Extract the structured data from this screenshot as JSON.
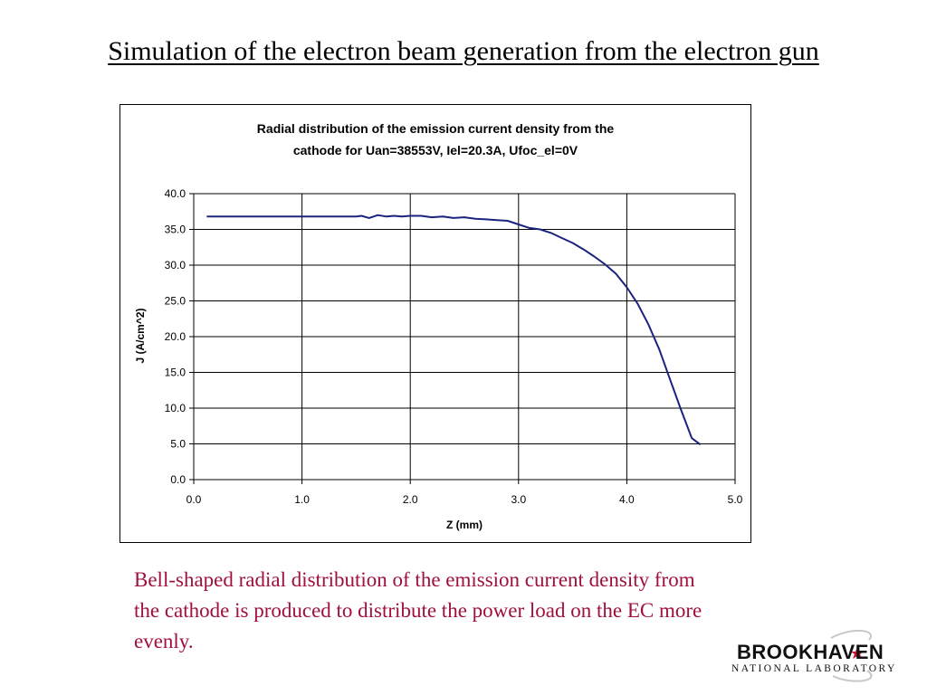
{
  "slide": {
    "title": "Simulation of the electron beam generation from the electron gun",
    "caption": "Bell-shaped radial distribution of the emission current density from the cathode is produced to distribute the power load on the EC more evenly."
  },
  "logo": {
    "name": "BROOKHAVEN",
    "subtitle": "NATIONAL LABORATORY",
    "accent_color": "#c8102e"
  },
  "chart_data": {
    "type": "line",
    "title_lines": [
      "Radial distribution of the emission current density from the",
      "cathode for Uan=38553V, Iel=20.3A, Ufoc_el=0V"
    ],
    "xlabel": "Z (mm)",
    "ylabel": "J (A/cm^2)",
    "xlim": [
      0,
      5
    ],
    "ylim": [
      0,
      40
    ],
    "x_ticks": [
      "0.0",
      "1.0",
      "2.0",
      "3.0",
      "4.0",
      "5.0"
    ],
    "y_ticks": [
      "0.0",
      "5.0",
      "10.0",
      "15.0",
      "20.0",
      "25.0",
      "30.0",
      "35.0",
      "40.0"
    ],
    "grid": true,
    "legend": "none",
    "series_color": "#1a237e",
    "series": [
      {
        "x": [
          0.12,
          0.5,
          1.0,
          1.5,
          1.55,
          1.62,
          1.7,
          1.78,
          1.85,
          1.92,
          2.0,
          2.1,
          2.2,
          2.3,
          2.4,
          2.5,
          2.6,
          2.7,
          2.8,
          2.9,
          3.0,
          3.1,
          3.2,
          3.3,
          3.4,
          3.5,
          3.6,
          3.7,
          3.8,
          3.9,
          4.0,
          4.1,
          4.2,
          4.3,
          4.4,
          4.5,
          4.6,
          4.68
        ],
        "y": [
          36.8,
          36.8,
          36.8,
          36.8,
          36.9,
          36.6,
          37.0,
          36.8,
          36.9,
          36.8,
          36.9,
          36.9,
          36.7,
          36.8,
          36.6,
          36.7,
          36.5,
          36.4,
          36.3,
          36.2,
          35.7,
          35.2,
          35.0,
          34.5,
          33.8,
          33.1,
          32.2,
          31.2,
          30.1,
          28.8,
          26.9,
          24.6,
          21.7,
          18.2,
          14.0,
          9.8,
          5.8,
          4.9
        ]
      }
    ]
  }
}
